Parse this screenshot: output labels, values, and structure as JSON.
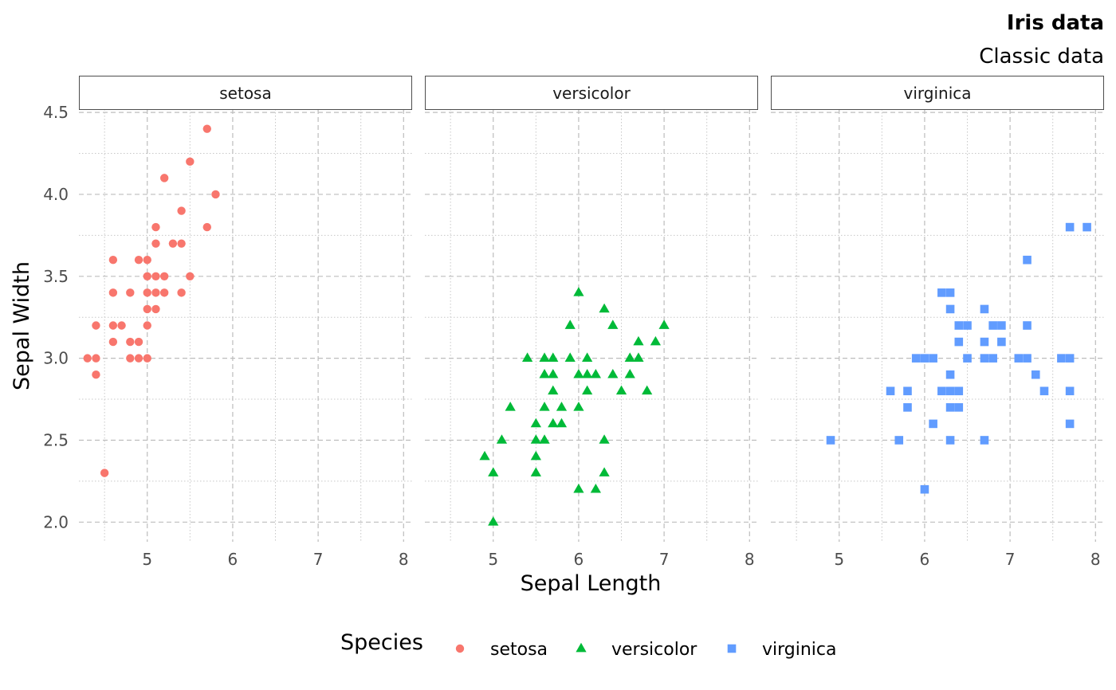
{
  "chart_data": {
    "type": "scatter",
    "title": "Iris data",
    "subtitle": "Classic data",
    "xlabel": "Sepal Length",
    "ylabel": "Sepal Width",
    "xlim": [
      4.2,
      8.1
    ],
    "ylim": [
      1.88,
      4.52
    ],
    "x_ticks": [
      5,
      6,
      7,
      8
    ],
    "y_ticks": [
      2.0,
      2.5,
      3.0,
      3.5,
      4.0,
      4.5
    ],
    "x_tick_labels": [
      "5",
      "6",
      "7",
      "8"
    ],
    "y_tick_labels": [
      "2.0",
      "2.5",
      "3.0",
      "3.5",
      "4.0",
      "4.5"
    ],
    "grid": true,
    "facet_by": "Species",
    "legend": {
      "title": "Species",
      "position": "bottom"
    },
    "series": [
      {
        "name": "setosa",
        "color": "#F8766D",
        "shape": "circle",
        "points": [
          [
            4.3,
            3.0
          ],
          [
            4.4,
            3.2
          ],
          [
            4.4,
            3.0
          ],
          [
            4.4,
            2.9
          ],
          [
            4.5,
            2.3
          ],
          [
            4.6,
            3.6
          ],
          [
            4.6,
            3.4
          ],
          [
            4.6,
            3.2
          ],
          [
            4.6,
            3.1
          ],
          [
            4.7,
            3.2
          ],
          [
            4.8,
            3.4
          ],
          [
            4.8,
            3.1
          ],
          [
            4.8,
            3.0
          ],
          [
            4.9,
            3.6
          ],
          [
            4.9,
            3.1
          ],
          [
            4.9,
            3.0
          ],
          [
            5.0,
            3.6
          ],
          [
            5.0,
            3.5
          ],
          [
            5.0,
            3.4
          ],
          [
            5.0,
            3.3
          ],
          [
            5.0,
            3.2
          ],
          [
            5.0,
            3.0
          ],
          [
            5.1,
            3.8
          ],
          [
            5.1,
            3.7
          ],
          [
            5.1,
            3.5
          ],
          [
            5.1,
            3.4
          ],
          [
            5.1,
            3.3
          ],
          [
            5.2,
            4.1
          ],
          [
            5.2,
            3.5
          ],
          [
            5.2,
            3.4
          ],
          [
            5.3,
            3.7
          ],
          [
            5.4,
            3.9
          ],
          [
            5.4,
            3.7
          ],
          [
            5.4,
            3.4
          ],
          [
            5.5,
            4.2
          ],
          [
            5.5,
            3.5
          ],
          [
            5.7,
            4.4
          ],
          [
            5.7,
            3.8
          ],
          [
            5.8,
            4.0
          ]
        ]
      },
      {
        "name": "versicolor",
        "color": "#00BA38",
        "shape": "triangle",
        "points": [
          [
            4.9,
            2.4
          ],
          [
            5.0,
            2.3
          ],
          [
            5.0,
            2.0
          ],
          [
            5.1,
            2.5
          ],
          [
            5.2,
            2.7
          ],
          [
            5.4,
            3.0
          ],
          [
            5.5,
            2.6
          ],
          [
            5.5,
            2.5
          ],
          [
            5.5,
            2.4
          ],
          [
            5.5,
            2.3
          ],
          [
            5.6,
            3.0
          ],
          [
            5.6,
            2.9
          ],
          [
            5.6,
            2.7
          ],
          [
            5.6,
            2.5
          ],
          [
            5.7,
            3.0
          ],
          [
            5.7,
            2.9
          ],
          [
            5.7,
            2.8
          ],
          [
            5.7,
            2.6
          ],
          [
            5.8,
            2.7
          ],
          [
            5.8,
            2.6
          ],
          [
            5.9,
            3.2
          ],
          [
            5.9,
            3.0
          ],
          [
            6.0,
            3.4
          ],
          [
            6.0,
            2.9
          ],
          [
            6.0,
            2.7
          ],
          [
            6.0,
            2.2
          ],
          [
            6.1,
            3.0
          ],
          [
            6.1,
            2.9
          ],
          [
            6.1,
            2.8
          ],
          [
            6.2,
            2.9
          ],
          [
            6.2,
            2.2
          ],
          [
            6.3,
            3.3
          ],
          [
            6.3,
            2.5
          ],
          [
            6.3,
            2.3
          ],
          [
            6.4,
            3.2
          ],
          [
            6.4,
            2.9
          ],
          [
            6.5,
            2.8
          ],
          [
            6.6,
            3.0
          ],
          [
            6.6,
            2.9
          ],
          [
            6.7,
            3.1
          ],
          [
            6.7,
            3.0
          ],
          [
            6.8,
            2.8
          ],
          [
            6.9,
            3.1
          ],
          [
            7.0,
            3.2
          ]
        ]
      },
      {
        "name": "virginica",
        "color": "#619CFF",
        "shape": "square",
        "points": [
          [
            4.9,
            2.5
          ],
          [
            5.6,
            2.8
          ],
          [
            5.7,
            2.5
          ],
          [
            5.8,
            2.8
          ],
          [
            5.8,
            2.7
          ],
          [
            5.9,
            3.0
          ],
          [
            6.0,
            3.0
          ],
          [
            6.0,
            2.2
          ],
          [
            6.1,
            3.0
          ],
          [
            6.1,
            2.6
          ],
          [
            6.2,
            3.4
          ],
          [
            6.2,
            2.8
          ],
          [
            6.3,
            3.4
          ],
          [
            6.3,
            3.3
          ],
          [
            6.3,
            2.9
          ],
          [
            6.3,
            2.8
          ],
          [
            6.3,
            2.7
          ],
          [
            6.3,
            2.5
          ],
          [
            6.4,
            3.2
          ],
          [
            6.4,
            3.1
          ],
          [
            6.4,
            2.8
          ],
          [
            6.4,
            2.7
          ],
          [
            6.5,
            3.2
          ],
          [
            6.5,
            3.0
          ],
          [
            6.7,
            3.3
          ],
          [
            6.7,
            3.1
          ],
          [
            6.7,
            3.0
          ],
          [
            6.7,
            2.5
          ],
          [
            6.8,
            3.2
          ],
          [
            6.8,
            3.0
          ],
          [
            6.9,
            3.2
          ],
          [
            6.9,
            3.1
          ],
          [
            7.1,
            3.0
          ],
          [
            7.2,
            3.6
          ],
          [
            7.2,
            3.2
          ],
          [
            7.2,
            3.0
          ],
          [
            7.3,
            2.9
          ],
          [
            7.4,
            2.8
          ],
          [
            7.6,
            3.0
          ],
          [
            7.7,
            3.8
          ],
          [
            7.7,
            3.0
          ],
          [
            7.7,
            2.8
          ],
          [
            7.7,
            2.6
          ],
          [
            7.9,
            3.8
          ]
        ]
      }
    ]
  }
}
